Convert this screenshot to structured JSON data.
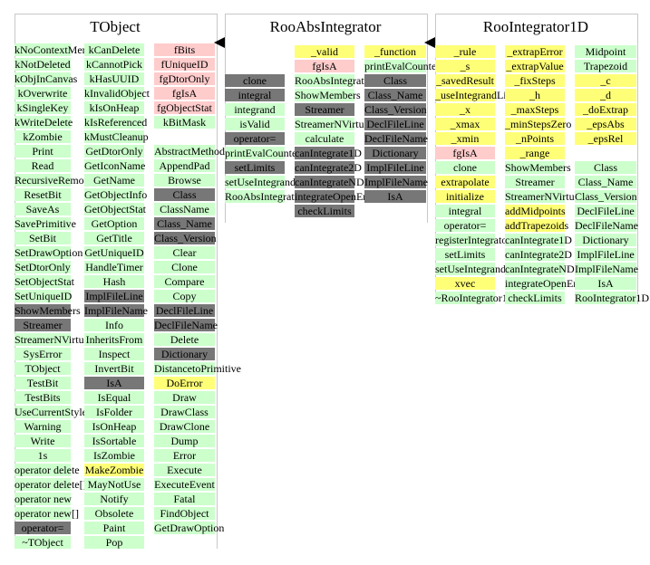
{
  "classes": [
    {
      "title": "TObject",
      "columns": [
        [
          [
            "kNoContextMenu",
            "g"
          ],
          [
            "kNotDeleted",
            "g"
          ],
          [
            "kObjInCanvas",
            "g"
          ],
          [
            "kOverwrite",
            "g"
          ],
          [
            "kSingleKey",
            "g"
          ],
          [
            "kWriteDelete",
            "g"
          ],
          [
            "kZombie",
            "g"
          ],
          [
            "Print",
            "g"
          ],
          [
            "Read",
            "g"
          ],
          [
            "RecursiveRemove",
            "g"
          ],
          [
            "ResetBit",
            "g"
          ],
          [
            "SaveAs",
            "g"
          ],
          [
            "SavePrimitive",
            "g"
          ],
          [
            "SetBit",
            "g"
          ],
          [
            "SetDrawOption",
            "g"
          ],
          [
            "SetDtorOnly",
            "g"
          ],
          [
            "SetObjectStat",
            "g"
          ],
          [
            "SetUniqueID",
            "g"
          ],
          [
            "ShowMembers",
            "d"
          ],
          [
            "Streamer",
            "d"
          ],
          [
            "StreamerNVirtual",
            "g"
          ],
          [
            "SysError",
            "g"
          ],
          [
            "TObject",
            "g"
          ],
          [
            "TestBit",
            "g"
          ],
          [
            "TestBits",
            "g"
          ],
          [
            "UseCurrentStyle",
            "g"
          ],
          [
            "Warning",
            "g"
          ],
          [
            "Write",
            "g"
          ],
          [
            "1s",
            "g"
          ],
          [
            "operator delete",
            "g"
          ],
          [
            "operator delete[]",
            "g"
          ],
          [
            "operator new",
            "g"
          ],
          [
            "operator new[]",
            "g"
          ],
          [
            "operator=",
            "d"
          ],
          [
            "~TObject",
            "g"
          ]
        ],
        [
          [
            "kCanDelete",
            "g"
          ],
          [
            "kCannotPick",
            "g"
          ],
          [
            "kHasUUID",
            "g"
          ],
          [
            "kInvalidObject",
            "g"
          ],
          [
            "kIsOnHeap",
            "g"
          ],
          [
            "kIsReferenced",
            "g"
          ],
          [
            "kMustCleanup",
            "g"
          ],
          [
            "GetDtorOnly",
            "g"
          ],
          [
            "GetIconName",
            "g"
          ],
          [
            "GetName",
            "g"
          ],
          [
            "GetObjectInfo",
            "g"
          ],
          [
            "GetObjectStat",
            "g"
          ],
          [
            "GetOption",
            "g"
          ],
          [
            "GetTitle",
            "g"
          ],
          [
            "GetUniqueID",
            "g"
          ],
          [
            "HandleTimer",
            "g"
          ],
          [
            "Hash",
            "g"
          ],
          [
            "ImplFileLine",
            "d"
          ],
          [
            "ImplFileName",
            "d"
          ],
          [
            "Info",
            "g"
          ],
          [
            "InheritsFrom",
            "g"
          ],
          [
            "Inspect",
            "g"
          ],
          [
            "InvertBit",
            "g"
          ],
          [
            "IsA",
            "d"
          ],
          [
            "IsEqual",
            "g"
          ],
          [
            "IsFolder",
            "g"
          ],
          [
            "IsOnHeap",
            "g"
          ],
          [
            "IsSortable",
            "g"
          ],
          [
            "IsZombie",
            "g"
          ],
          [
            "MakeZombie",
            "y"
          ],
          [
            "MayNotUse",
            "g"
          ],
          [
            "Notify",
            "g"
          ],
          [
            "Obsolete",
            "g"
          ],
          [
            "Paint",
            "g"
          ],
          [
            "Pop",
            "g"
          ]
        ],
        [
          [
            "fBits",
            "p"
          ],
          [
            "fUniqueID",
            "p"
          ],
          [
            "fgDtorOnly",
            "p"
          ],
          [
            "fgIsA",
            "p"
          ],
          [
            "fgObjectStat",
            "p"
          ],
          [
            "kBitMask",
            "g"
          ],
          [
            "",
            "w"
          ],
          [
            "AbstractMethod",
            "g"
          ],
          [
            "AppendPad",
            "g"
          ],
          [
            "Browse",
            "g"
          ],
          [
            "Class",
            "d"
          ],
          [
            "ClassName",
            "g"
          ],
          [
            "Class_Name",
            "d"
          ],
          [
            "Class_Version",
            "d"
          ],
          [
            "Clear",
            "g"
          ],
          [
            "Clone",
            "g"
          ],
          [
            "Compare",
            "g"
          ],
          [
            "Copy",
            "g"
          ],
          [
            "DeclFileLine",
            "d"
          ],
          [
            "DeclFileName",
            "d"
          ],
          [
            "Delete",
            "g"
          ],
          [
            "Dictionary",
            "d"
          ],
          [
            "DistancetoPrimitive",
            "g"
          ],
          [
            "DoError",
            "y"
          ],
          [
            "Draw",
            "g"
          ],
          [
            "DrawClass",
            "g"
          ],
          [
            "DrawClone",
            "g"
          ],
          [
            "Dump",
            "g"
          ],
          [
            "Error",
            "g"
          ],
          [
            "Execute",
            "g"
          ],
          [
            "ExecuteEvent",
            "g"
          ],
          [
            "Fatal",
            "g"
          ],
          [
            "FindObject",
            "g"
          ],
          [
            "GetDrawOption",
            "g"
          ]
        ]
      ]
    },
    {
      "title": "RooAbsIntegrator",
      "columns": [
        [
          [
            "",
            "w"
          ],
          [
            "",
            "w"
          ],
          [
            "clone",
            "d"
          ],
          [
            "integral",
            "d"
          ],
          [
            "integrand",
            "g"
          ],
          [
            "isValid",
            "g"
          ],
          [
            "operator=",
            "d"
          ],
          [
            "printEvalCounter",
            "g"
          ],
          [
            "setLimits",
            "d"
          ],
          [
            "setUseIntegrandLimits",
            "g"
          ],
          [
            "RooAbsIntegrator",
            "g"
          ]
        ],
        [
          [
            "_valid",
            "y"
          ],
          [
            "fgIsA",
            "p"
          ],
          [
            "RooAbsIntegrator",
            "g"
          ],
          [
            "ShowMembers",
            "g"
          ],
          [
            "Streamer",
            "d"
          ],
          [
            "StreamerNVirtual",
            "g"
          ],
          [
            "calculate",
            "g"
          ],
          [
            "canIntegrate1D",
            "d"
          ],
          [
            "canIntegrate2D",
            "d"
          ],
          [
            "canIntegrateND",
            "d"
          ],
          [
            "integrateOpenEnded",
            "d"
          ],
          [
            "checkLimits",
            "d"
          ]
        ],
        [
          [
            "_function",
            "y"
          ],
          [
            "printEvalCounter",
            "g"
          ],
          [
            "Class",
            "d"
          ],
          [
            "Class_Name",
            "d"
          ],
          [
            "Class_Version",
            "d"
          ],
          [
            "DeclFileLine",
            "d"
          ],
          [
            "DeclFileName",
            "d"
          ],
          [
            "Dictionary",
            "d"
          ],
          [
            "ImplFileLine",
            "d"
          ],
          [
            "ImplFileName",
            "d"
          ],
          [
            "IsA",
            "d"
          ]
        ]
      ]
    },
    {
      "title": "RooIntegrator1D",
      "columns": [
        [
          [
            "_rule",
            "y"
          ],
          [
            "_s",
            "y"
          ],
          [
            "_savedResult",
            "y"
          ],
          [
            "_useIntegrandLimits",
            "y"
          ],
          [
            "_x",
            "y"
          ],
          [
            "_xmax",
            "y"
          ],
          [
            "_xmin",
            "y"
          ],
          [
            "fgIsA",
            "p"
          ],
          [
            "clone",
            "g"
          ],
          [
            "extrapolate",
            "y"
          ],
          [
            "initialize",
            "y"
          ],
          [
            "integral",
            "g"
          ],
          [
            "operator=",
            "g"
          ],
          [
            "registerIntegrator",
            "g"
          ],
          [
            "setLimits",
            "g"
          ],
          [
            "setUseIntegrandLimits",
            "g"
          ],
          [
            "xvec",
            "y"
          ],
          [
            "~RooIntegrator1D",
            "g"
          ]
        ],
        [
          [
            "_extrapError",
            "y"
          ],
          [
            "_extrapValue",
            "y"
          ],
          [
            "_fixSteps",
            "y"
          ],
          [
            "_h",
            "y"
          ],
          [
            "_maxSteps",
            "y"
          ],
          [
            "_minStepsZero",
            "y"
          ],
          [
            "_nPoints",
            "y"
          ],
          [
            "_range",
            "y"
          ],
          [
            "ShowMembers",
            "g"
          ],
          [
            "Streamer",
            "g"
          ],
          [
            "StreamerNVirtual",
            "g"
          ],
          [
            "addMidpoints",
            "y"
          ],
          [
            "addTrapezoids",
            "y"
          ],
          [
            "canIntegrate1D",
            "g"
          ],
          [
            "canIntegrate2D",
            "g"
          ],
          [
            "canIntegrateND",
            "g"
          ],
          [
            "integrateOpenEnded",
            "g"
          ],
          [
            "checkLimits",
            "g"
          ]
        ],
        [
          [
            "Midpoint",
            "g"
          ],
          [
            "Trapezoid",
            "g"
          ],
          [
            "_c",
            "y"
          ],
          [
            "_d",
            "y"
          ],
          [
            "_doExtrap",
            "y"
          ],
          [
            "_epsAbs",
            "y"
          ],
          [
            "_epsRel",
            "y"
          ],
          [
            "",
            "w"
          ],
          [
            "Class",
            "g"
          ],
          [
            "Class_Name",
            "g"
          ],
          [
            "Class_Version",
            "g"
          ],
          [
            "DeclFileLine",
            "g"
          ],
          [
            "DeclFileName",
            "g"
          ],
          [
            "Dictionary",
            "g"
          ],
          [
            "ImplFileLine",
            "g"
          ],
          [
            "ImplFileName",
            "g"
          ],
          [
            "IsA",
            "g"
          ],
          [
            "RooIntegrator1D",
            "g"
          ]
        ]
      ]
    }
  ],
  "colors": {
    "public_method": "#ccffcc",
    "data_member": "#ffcccc",
    "protected_member": "#ffff77",
    "inherited_shadowed": "#777777"
  }
}
